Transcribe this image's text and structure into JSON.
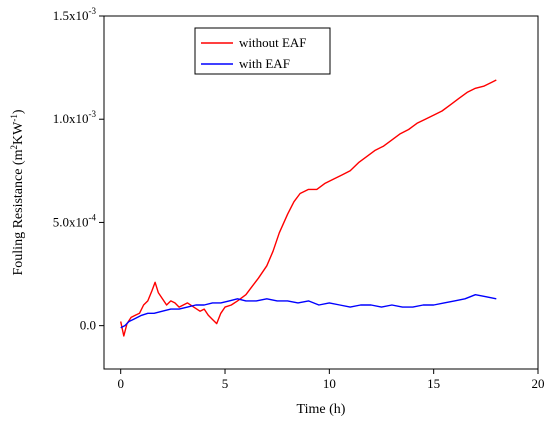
{
  "chart_data": {
    "type": "line",
    "title": "",
    "xlabel": "Time (h)",
    "ylabel": {
      "prefix": "Fouling Resistance (m",
      "sup1": "2",
      "mid": "KW",
      "sup2": "-1",
      "suffix": ")"
    },
    "xlim": [
      -0.8,
      20
    ],
    "ylim": [
      -0.00021,
      0.0015
    ],
    "x_ticks": [
      {
        "value": 0,
        "label": "0"
      },
      {
        "value": 5,
        "label": "5"
      },
      {
        "value": 10,
        "label": "10"
      },
      {
        "value": 15,
        "label": "15"
      },
      {
        "value": 20,
        "label": "20"
      }
    ],
    "y_ticks": [
      {
        "value": 0.0,
        "label": "0.0",
        "sup": ""
      },
      {
        "value": 0.0005,
        "label": "5.0x10",
        "sup": "-4"
      },
      {
        "value": 0.001,
        "label": "1.0x10",
        "sup": "-3"
      },
      {
        "value": 0.0015,
        "label": "1.5x10",
        "sup": "-3"
      }
    ],
    "legend_position": "top-center",
    "series": [
      {
        "name": "without EAF",
        "color": "#ff0000",
        "x": [
          0,
          0.15,
          0.3,
          0.5,
          0.7,
          0.9,
          1.1,
          1.3,
          1.5,
          1.65,
          1.8,
          2.0,
          2.2,
          2.4,
          2.6,
          2.8,
          3.0,
          3.2,
          3.5,
          3.8,
          4.0,
          4.2,
          4.4,
          4.6,
          4.8,
          5.0,
          5.3,
          5.6,
          6.0,
          6.3,
          6.6,
          7.0,
          7.3,
          7.6,
          8.0,
          8.3,
          8.6,
          9.0,
          9.4,
          9.8,
          10.2,
          10.6,
          11.0,
          11.4,
          11.8,
          12.2,
          12.6,
          13.0,
          13.4,
          13.8,
          14.2,
          14.6,
          15.0,
          15.4,
          15.8,
          16.2,
          16.6,
          17.0,
          17.4,
          17.8,
          18.0
        ],
        "y": [
          2e-05,
          -5e-05,
          1e-05,
          4e-05,
          5e-05,
          6e-05,
          0.0001,
          0.00012,
          0.00017,
          0.00021,
          0.00016,
          0.00013,
          0.0001,
          0.00012,
          0.00011,
          9e-05,
          0.0001,
          0.00011,
          9e-05,
          7e-05,
          8e-05,
          5e-05,
          3e-05,
          1e-05,
          6e-05,
          9e-05,
          0.0001,
          0.00012,
          0.00015,
          0.00019,
          0.00023,
          0.00029,
          0.00036,
          0.00045,
          0.00054,
          0.0006,
          0.00064,
          0.00066,
          0.00066,
          0.00069,
          0.00071,
          0.00073,
          0.00075,
          0.00079,
          0.00082,
          0.00085,
          0.00087,
          0.0009,
          0.00093,
          0.00095,
          0.00098,
          0.001,
          0.00102,
          0.00104,
          0.00107,
          0.0011,
          0.00113,
          0.00115,
          0.00116,
          0.00118,
          0.00119
        ]
      },
      {
        "name": "with EAF",
        "color": "#0000ff",
        "x": [
          0,
          0.2,
          0.4,
          0.6,
          0.8,
          1.0,
          1.3,
          1.6,
          2.0,
          2.4,
          2.8,
          3.2,
          3.6,
          4.0,
          4.4,
          4.8,
          5.2,
          5.6,
          6.0,
          6.5,
          7.0,
          7.5,
          8.0,
          8.5,
          9.0,
          9.5,
          10.0,
          10.5,
          11.0,
          11.5,
          12.0,
          12.5,
          13.0,
          13.5,
          14.0,
          14.5,
          15.0,
          15.5,
          16.0,
          16.5,
          17.0,
          17.5,
          18.0
        ],
        "y": [
          -1e-05,
          0.0,
          2e-05,
          3e-05,
          4e-05,
          5e-05,
          6e-05,
          6e-05,
          7e-05,
          8e-05,
          8e-05,
          9e-05,
          0.0001,
          0.0001,
          0.00011,
          0.00011,
          0.00012,
          0.00013,
          0.00012,
          0.00012,
          0.00013,
          0.00012,
          0.00012,
          0.00011,
          0.00012,
          0.0001,
          0.00011,
          0.0001,
          9e-05,
          0.0001,
          0.0001,
          9e-05,
          0.0001,
          9e-05,
          9e-05,
          0.0001,
          0.0001,
          0.00011,
          0.00012,
          0.00013,
          0.00015,
          0.00014,
          0.00013
        ]
      }
    ]
  }
}
